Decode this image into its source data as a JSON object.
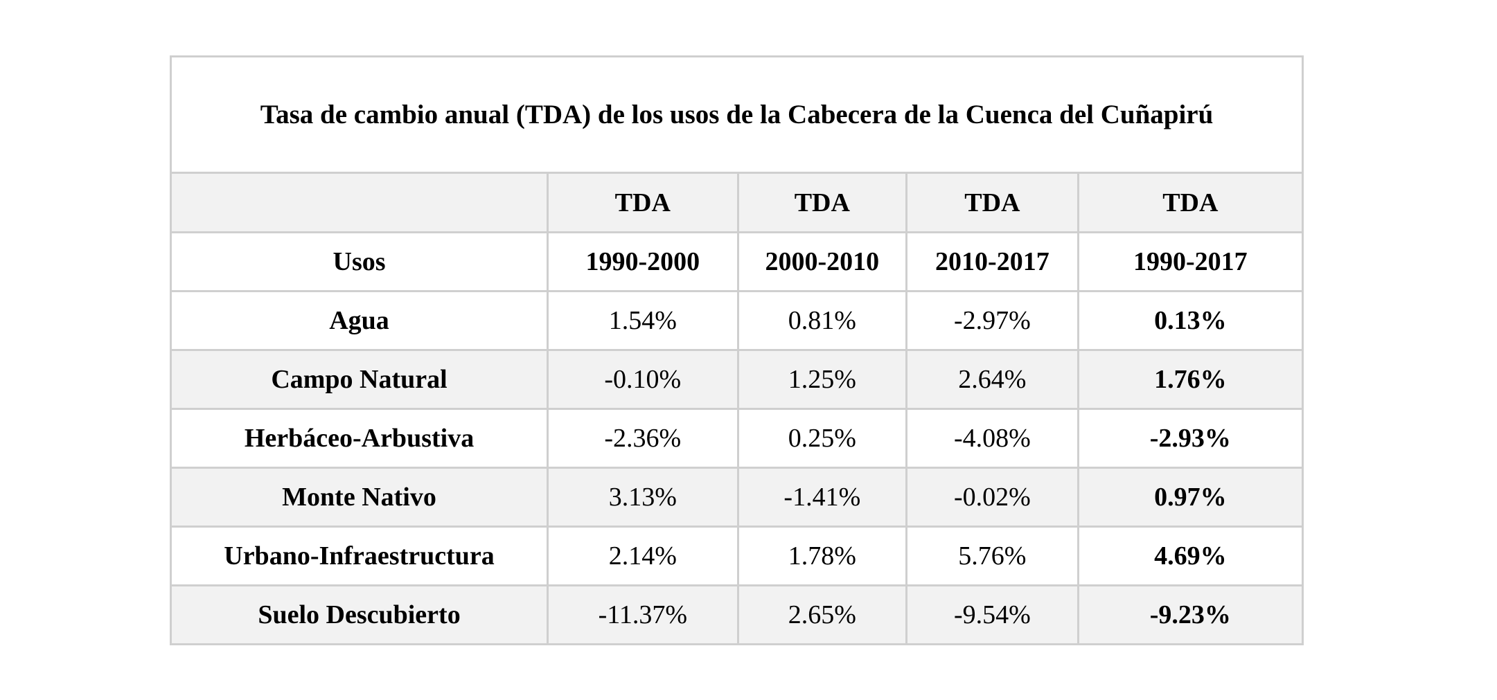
{
  "table": {
    "title": "Tasa de cambio anual (TDA) de los usos de la Cabecera de la Cuenca del Cuñapirú",
    "header_top": [
      "",
      "TDA",
      "TDA",
      "TDA",
      "TDA"
    ],
    "header_bottom": [
      "Usos",
      "1990-2000",
      "2000-2010",
      "2010-2017",
      "1990-2017"
    ],
    "rows": [
      {
        "uso": "Agua",
        "values": [
          "1.54%",
          "0.81%",
          "-2.97%",
          "0.13%"
        ]
      },
      {
        "uso": "Campo Natural",
        "values": [
          "-0.10%",
          "1.25%",
          "2.64%",
          "1.76%"
        ]
      },
      {
        "uso": "Herbáceo-Arbustiva",
        "values": [
          "-2.36%",
          "0.25%",
          "-4.08%",
          "-2.93%"
        ]
      },
      {
        "uso": "Monte Nativo",
        "values": [
          "3.13%",
          "-1.41%",
          "-0.02%",
          "0.97%"
        ]
      },
      {
        "uso": "Urbano-Infraestructura",
        "values": [
          "2.14%",
          "1.78%",
          "5.76%",
          "4.69%"
        ]
      },
      {
        "uso": "Suelo Descubierto",
        "values": [
          "-11.37%",
          "2.65%",
          "-9.54%",
          "-9.23%"
        ]
      }
    ]
  }
}
